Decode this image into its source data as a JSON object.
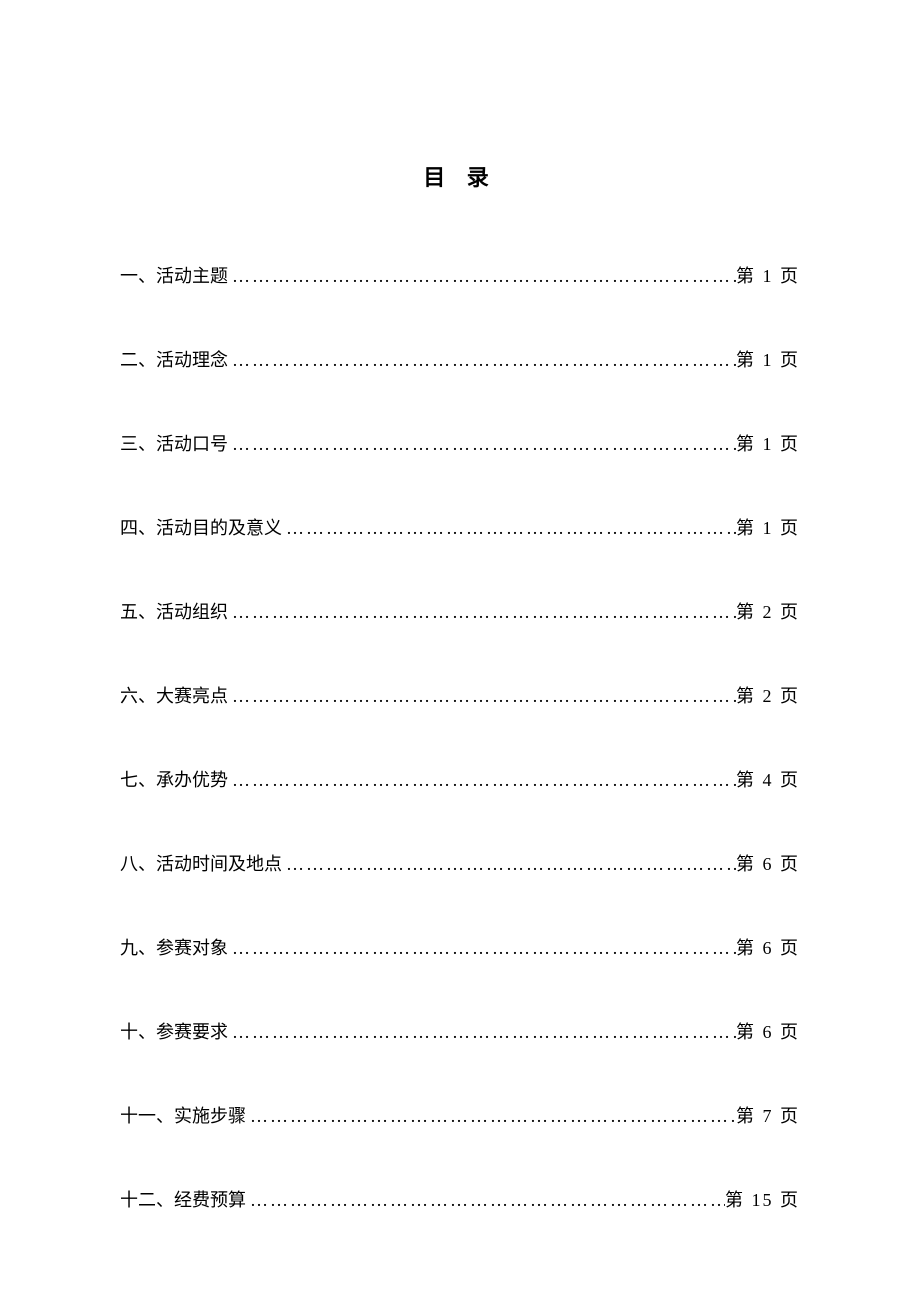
{
  "title": "目 录",
  "page_prefix": "第",
  "page_suffix": "页",
  "dots": "………………………………………………………………………………………………",
  "entries": [
    {
      "num": "一、",
      "label": "活动主题",
      "page": "1"
    },
    {
      "num": "二、",
      "label": "活动理念",
      "page": "1"
    },
    {
      "num": "三、",
      "label": "活动口号",
      "page": "1"
    },
    {
      "num": "四、",
      "label": "活动目的及意义",
      "page": "1"
    },
    {
      "num": "五、",
      "label": "活动组织",
      "page": "2"
    },
    {
      "num": "六、",
      "label": "大赛亮点",
      "page": "2"
    },
    {
      "num": "七、",
      "label": "承办优势",
      "page": "4"
    },
    {
      "num": "八、",
      "label": "活动时间及地点",
      "page": "6"
    },
    {
      "num": "九、",
      "label": "参赛对象",
      "page": "6"
    },
    {
      "num": "十、",
      "label": "参赛要求",
      "page": "6"
    },
    {
      "num": "十一、",
      "label": "实施步骤",
      "page": "7"
    },
    {
      "num": "十二、",
      "label": "经费预算",
      "page": "15"
    }
  ],
  "colors": {
    "background": "#ffffff",
    "text": "#000000"
  },
  "typography": {
    "title_fontsize": 22,
    "body_fontsize": 18,
    "font_family": "SimSun"
  }
}
